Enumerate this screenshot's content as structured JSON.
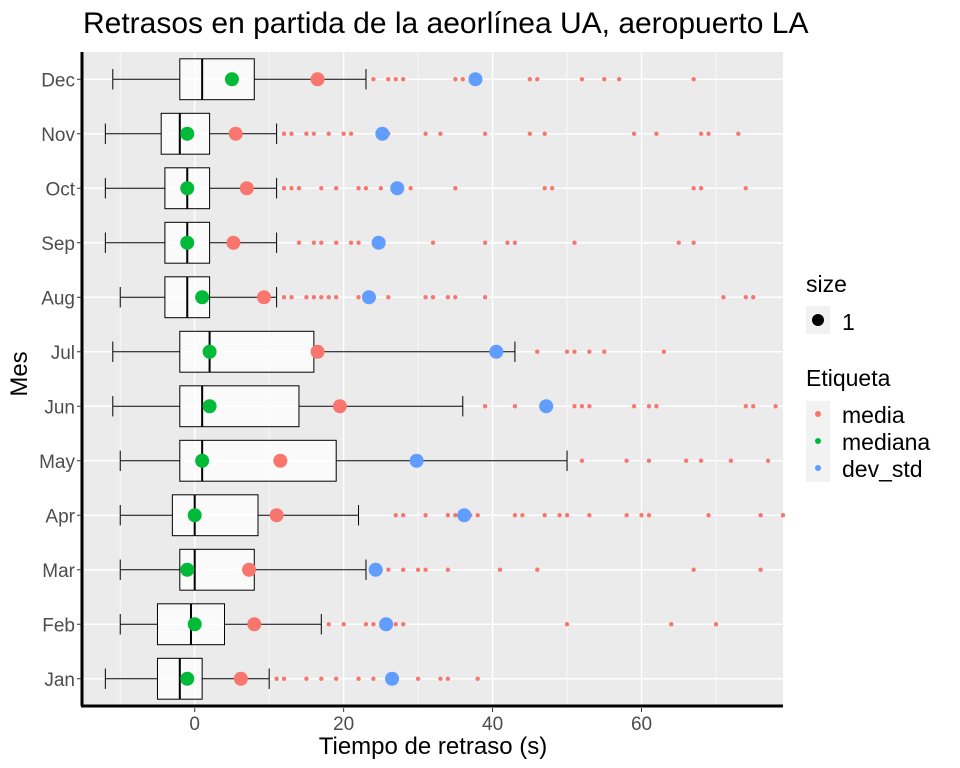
{
  "chart_data": {
    "type": "boxplot",
    "title": "Retrasos en partida de la aeorlínea UA, aeropuerto LA",
    "xlabel": "Tiempo de retraso (s)",
    "ylabel": "Mes",
    "xlim": [
      -15,
      79
    ],
    "x_ticks": [
      0,
      20,
      40,
      60
    ],
    "x_tick_labels": [
      "0",
      "20",
      "40",
      "60"
    ],
    "categories": [
      "Jan",
      "Feb",
      "Mar",
      "Apr",
      "May",
      "Jun",
      "Jul",
      "Aug",
      "Sep",
      "Oct",
      "Nov",
      "Dec"
    ],
    "grid": true,
    "boxes": [
      {
        "month": "Jan",
        "whisker_low": -12,
        "q1": -5,
        "median": -2,
        "q3": 1,
        "whisker_high": 10
      },
      {
        "month": "Feb",
        "whisker_low": -10,
        "q1": -5,
        "median": -0.5,
        "q3": 4,
        "whisker_high": 17
      },
      {
        "month": "Mar",
        "whisker_low": -10,
        "q1": -2,
        "median": 0,
        "q3": 8,
        "whisker_high": 23
      },
      {
        "month": "Apr",
        "whisker_low": -10,
        "q1": -3,
        "median": 0,
        "q3": 8.5,
        "whisker_high": 22
      },
      {
        "month": "May",
        "whisker_low": -10,
        "q1": -2,
        "median": 1,
        "q3": 19,
        "whisker_high": 50
      },
      {
        "month": "Jun",
        "whisker_low": -11,
        "q1": -2,
        "median": 1,
        "q3": 14,
        "whisker_high": 36
      },
      {
        "month": "Jul",
        "whisker_low": -11,
        "q1": -2,
        "median": 2,
        "q3": 16,
        "whisker_high": 43
      },
      {
        "month": "Aug",
        "whisker_low": -10,
        "q1": -4,
        "median": -1,
        "q3": 2,
        "whisker_high": 11
      },
      {
        "month": "Sep",
        "whisker_low": -12,
        "q1": -4,
        "median": -1,
        "q3": 2,
        "whisker_high": 11
      },
      {
        "month": "Oct",
        "whisker_low": -12,
        "q1": -4,
        "median": -1,
        "q3": 2,
        "whisker_high": 11
      },
      {
        "month": "Nov",
        "whisker_low": -12,
        "q1": -4.5,
        "median": -2,
        "q3": 2,
        "whisker_high": 11
      },
      {
        "month": "Dec",
        "whisker_low": -11,
        "q1": -2,
        "median": 1,
        "q3": 8,
        "whisker_high": 23
      }
    ],
    "outliers": [
      {
        "month": "Jan",
        "values": [
          11,
          12,
          15,
          17,
          19,
          22,
          24,
          26,
          30,
          33,
          34,
          38
        ]
      },
      {
        "month": "Feb",
        "values": [
          18,
          20,
          23,
          24,
          27,
          28,
          50,
          64,
          70
        ]
      },
      {
        "month": "Mar",
        "values": [
          24,
          25,
          26,
          28,
          30,
          31,
          34,
          41,
          46,
          67,
          76
        ]
      },
      {
        "month": "Apr",
        "values": [
          27,
          28,
          31,
          34,
          35,
          36,
          37,
          38,
          43,
          44,
          47,
          49,
          50,
          53,
          58,
          60,
          61,
          69,
          76,
          79
        ]
      },
      {
        "month": "May",
        "values": [
          52,
          58,
          61,
          66,
          68,
          72,
          77
        ]
      },
      {
        "month": "Jun",
        "values": [
          39,
          43,
          47,
          51,
          52,
          53,
          59,
          61,
          62,
          74,
          75,
          78
        ]
      },
      {
        "month": "Jul",
        "values": [
          46,
          50,
          51,
          53,
          55,
          63
        ]
      },
      {
        "month": "Aug",
        "values": [
          12,
          13,
          15,
          16,
          17,
          18,
          19,
          22,
          23,
          26,
          31,
          32,
          34,
          35,
          39,
          71,
          74,
          75
        ]
      },
      {
        "month": "Sep",
        "values": [
          14,
          16,
          17,
          19,
          21,
          22,
          25,
          32,
          39,
          42,
          43,
          51,
          65,
          67
        ]
      },
      {
        "month": "Oct",
        "values": [
          12,
          13,
          14,
          17,
          19,
          22,
          23,
          25,
          27,
          29,
          35,
          47,
          48,
          67,
          68,
          74
        ]
      },
      {
        "month": "Nov",
        "values": [
          12,
          13,
          15,
          16,
          18,
          20,
          21,
          26,
          31,
          33,
          39,
          45,
          47,
          59,
          62,
          68,
          69,
          73
        ]
      },
      {
        "month": "Dec",
        "values": [
          24,
          26,
          27,
          28,
          35,
          36,
          45,
          46,
          52,
          55,
          57,
          67
        ]
      }
    ],
    "summary_points": [
      {
        "month": "Jan",
        "media": 6.2,
        "mediana": -1,
        "dev_std": 26.5
      },
      {
        "month": "Feb",
        "media": 8,
        "mediana": 0,
        "dev_std": 25.7
      },
      {
        "month": "Mar",
        "media": 7.3,
        "mediana": -1,
        "dev_std": 24.3
      },
      {
        "month": "Apr",
        "media": 11,
        "mediana": 0,
        "dev_std": 36.2
      },
      {
        "month": "May",
        "media": 11.5,
        "mediana": 1,
        "dev_std": 29.8
      },
      {
        "month": "Jun",
        "media": 19.5,
        "mediana": 2,
        "dev_std": 47.2
      },
      {
        "month": "Jul",
        "media": 16.5,
        "mediana": 2,
        "dev_std": 40.5
      },
      {
        "month": "Aug",
        "media": 9.3,
        "mediana": 1,
        "dev_std": 23.4
      },
      {
        "month": "Sep",
        "media": 5.2,
        "mediana": -1,
        "dev_std": 24.7
      },
      {
        "month": "Oct",
        "media": 7,
        "mediana": -1,
        "dev_std": 27.2
      },
      {
        "month": "Nov",
        "media": 5.5,
        "mediana": -1,
        "dev_std": 25.2
      },
      {
        "month": "Dec",
        "media": 16.5,
        "mediana": 5,
        "dev_std": 37.7
      }
    ],
    "legend": {
      "size_title": "size",
      "size_value": "1",
      "label_title": "Etiqueta",
      "items": [
        {
          "name": "media",
          "color": "#F8766D"
        },
        {
          "name": "mediana",
          "color": "#00BA38"
        },
        {
          "name": "dev_std",
          "color": "#619CFF"
        }
      ],
      "placement": "right"
    },
    "colors": {
      "panel": "#EBEBEB",
      "grid": "#FFFFFF",
      "box_fill": "#FFFFFF",
      "box_line": "#000000",
      "outlier": "#F8766D"
    }
  }
}
